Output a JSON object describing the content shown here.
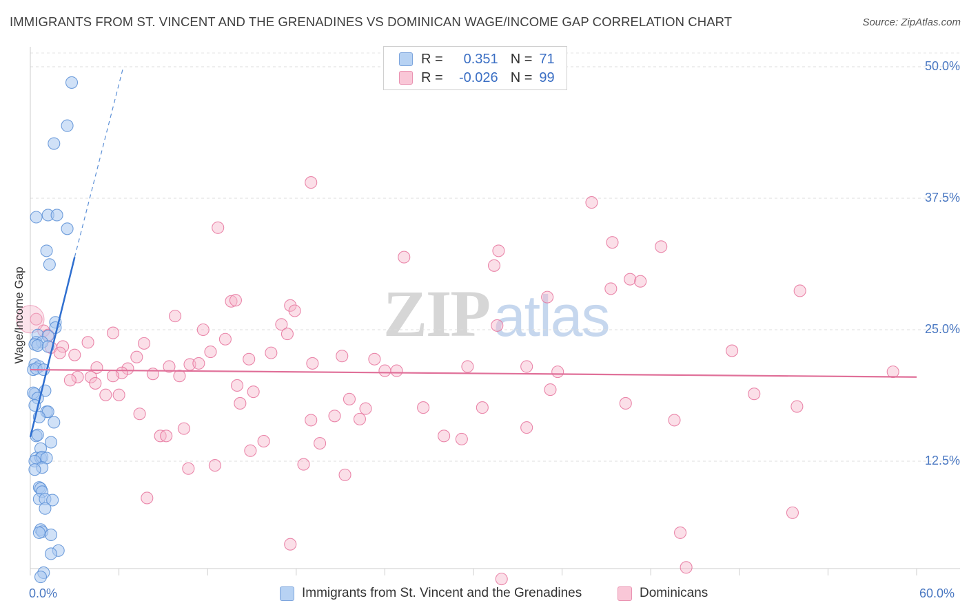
{
  "chart_data": {
    "type": "scatter",
    "title": "IMMIGRANTS FROM ST. VINCENT AND THE GRENADINES VS DOMINICAN WAGE/INCOME GAP CORRELATION CHART",
    "source": "Source: ZipAtlas.com",
    "xlabel": "",
    "ylabel": "Wage/Income Gap",
    "xlim": [
      0,
      60
    ],
    "ylim": [
      0,
      52
    ],
    "x_tick_labels": [
      "0.0%",
      "60.0%"
    ],
    "y_ticks": [
      12.5,
      25.0,
      37.5,
      50.0
    ],
    "y_tick_labels": [
      "12.5%",
      "25.0%",
      "37.5%",
      "50.0%"
    ],
    "watermark": {
      "zip": "ZIP",
      "atlas": "atlas"
    },
    "legend": [
      {
        "r_label": "R =",
        "r_value": "0.351",
        "n_label": "N =",
        "n_value": "71"
      },
      {
        "r_label": "R =",
        "r_value": "-0.026",
        "n_label": "N =",
        "n_value": "99"
      }
    ],
    "series": [
      {
        "name": "Immigrants from St. Vincent and the Grenadines",
        "color": "#5b8fd6",
        "fill": "#a9c8f0",
        "trend": {
          "x": [
            0.0,
            3.0
          ],
          "y": [
            14.8,
            31.9
          ],
          "dash_to": [
            6.3,
            50.0
          ]
        },
        "points": [
          [
            2.8,
            48.5
          ],
          [
            2.5,
            44.4
          ],
          [
            1.6,
            42.7
          ],
          [
            1.2,
            35.9
          ],
          [
            1.8,
            35.9
          ],
          [
            0.4,
            35.7
          ],
          [
            2.5,
            34.6
          ],
          [
            1.1,
            32.5
          ],
          [
            1.3,
            31.2
          ],
          [
            1.7,
            25.7
          ],
          [
            1.7,
            25.2
          ],
          [
            0.5,
            24.5
          ],
          [
            1.2,
            24.4
          ],
          [
            0.4,
            23.8
          ],
          [
            0.8,
            23.8
          ],
          [
            0.3,
            23.6
          ],
          [
            0.5,
            23.5
          ],
          [
            1.2,
            23.4
          ],
          [
            0.3,
            21.7
          ],
          [
            0.6,
            21.5
          ],
          [
            0.2,
            21.2
          ],
          [
            0.4,
            21.3
          ],
          [
            0.9,
            21.2
          ],
          [
            1.0,
            19.2
          ],
          [
            0.3,
            18.9
          ],
          [
            0.2,
            19.0
          ],
          [
            0.5,
            18.5
          ],
          [
            0.3,
            17.8
          ],
          [
            1.1,
            17.2
          ],
          [
            1.2,
            17.2
          ],
          [
            0.6,
            16.7
          ],
          [
            1.6,
            16.2
          ],
          [
            0.4,
            14.9
          ],
          [
            0.5,
            15.0
          ],
          [
            1.4,
            14.3
          ],
          [
            0.7,
            13.7
          ],
          [
            0.4,
            12.8
          ],
          [
            0.7,
            12.8
          ],
          [
            0.8,
            12.9
          ],
          [
            1.1,
            12.8
          ],
          [
            0.3,
            12.5
          ],
          [
            0.8,
            11.9
          ],
          [
            0.3,
            11.7
          ],
          [
            0.6,
            10.0
          ],
          [
            0.7,
            9.9
          ],
          [
            0.8,
            9.6
          ],
          [
            0.6,
            8.9
          ],
          [
            1.0,
            8.9
          ],
          [
            1.5,
            8.8
          ],
          [
            1.0,
            8.0
          ],
          [
            0.7,
            6.0
          ],
          [
            0.8,
            5.8
          ],
          [
            0.6,
            5.7
          ],
          [
            1.4,
            5.5
          ],
          [
            1.9,
            4.0
          ],
          [
            1.4,
            3.7
          ],
          [
            0.9,
            1.9
          ],
          [
            0.7,
            1.5
          ]
        ]
      },
      {
        "name": "Dominicans",
        "color": "#e6739c",
        "fill": "#f6b9cd",
        "trend": {
          "x": [
            0.0,
            60.0
          ],
          "y": [
            21.2,
            20.5
          ]
        },
        "points": [
          [
            19.0,
            39.0
          ],
          [
            38.0,
            37.1
          ],
          [
            12.7,
            34.7
          ],
          [
            39.4,
            33.3
          ],
          [
            42.7,
            32.9
          ],
          [
            31.7,
            32.5
          ],
          [
            25.3,
            31.9
          ],
          [
            31.4,
            31.1
          ],
          [
            40.6,
            29.8
          ],
          [
            41.3,
            29.6
          ],
          [
            39.3,
            28.9
          ],
          [
            52.1,
            28.7
          ],
          [
            35.0,
            28.1
          ],
          [
            13.6,
            27.7
          ],
          [
            13.9,
            27.8
          ],
          [
            17.6,
            27.3
          ],
          [
            17.9,
            26.8
          ],
          [
            9.8,
            26.3
          ],
          [
            0.4,
            26.0
          ],
          [
            17.0,
            25.5
          ],
          [
            31.6,
            25.4
          ],
          [
            11.7,
            25.0
          ],
          [
            0.9,
            24.9
          ],
          [
            1.2,
            24.5
          ],
          [
            5.6,
            24.7
          ],
          [
            17.4,
            24.6
          ],
          [
            13.2,
            24.1
          ],
          [
            3.9,
            23.8
          ],
          [
            7.7,
            23.7
          ],
          [
            1.4,
            23.3
          ],
          [
            2.2,
            23.4
          ],
          [
            2.0,
            22.8
          ],
          [
            16.3,
            22.8
          ],
          [
            12.2,
            22.9
          ],
          [
            3.0,
            22.6
          ],
          [
            21.1,
            22.5
          ],
          [
            23.3,
            22.2
          ],
          [
            14.8,
            22.2
          ],
          [
            7.2,
            22.4
          ],
          [
            47.5,
            23.0
          ],
          [
            10.8,
            21.7
          ],
          [
            19.1,
            21.8
          ],
          [
            11.4,
            21.8
          ],
          [
            4.5,
            21.4
          ],
          [
            6.6,
            21.3
          ],
          [
            9.4,
            21.5
          ],
          [
            29.6,
            21.5
          ],
          [
            33.6,
            21.5
          ],
          [
            24.0,
            21.1
          ],
          [
            24.8,
            21.1
          ],
          [
            35.7,
            21.0
          ],
          [
            58.4,
            21.0
          ],
          [
            4.1,
            20.5
          ],
          [
            6.2,
            20.9
          ],
          [
            8.3,
            20.8
          ],
          [
            10.1,
            20.6
          ],
          [
            3.2,
            20.5
          ],
          [
            5.6,
            20.6
          ],
          [
            2.7,
            20.2
          ],
          [
            4.4,
            19.9
          ],
          [
            14.0,
            19.7
          ],
          [
            35.2,
            19.3
          ],
          [
            15.1,
            19.1
          ],
          [
            49.0,
            18.9
          ],
          [
            5.1,
            18.8
          ],
          [
            6.0,
            18.8
          ],
          [
            21.6,
            18.4
          ],
          [
            40.3,
            18.0
          ],
          [
            14.2,
            18.0
          ],
          [
            51.9,
            17.7
          ],
          [
            22.7,
            17.5
          ],
          [
            26.6,
            17.6
          ],
          [
            30.6,
            17.6
          ],
          [
            7.4,
            17.0
          ],
          [
            20.6,
            16.8
          ],
          [
            19.0,
            16.4
          ],
          [
            22.3,
            16.5
          ],
          [
            43.6,
            16.4
          ],
          [
            10.4,
            15.6
          ],
          [
            33.6,
            15.7
          ],
          [
            8.8,
            14.9
          ],
          [
            9.2,
            14.9
          ],
          [
            28.0,
            14.9
          ],
          [
            29.2,
            14.6
          ],
          [
            15.8,
            14.4
          ],
          [
            19.6,
            14.2
          ],
          [
            14.9,
            13.5
          ],
          [
            18.5,
            12.2
          ],
          [
            12.5,
            12.1
          ],
          [
            10.7,
            11.8
          ],
          [
            21.3,
            11.2
          ],
          [
            7.9,
            9.0
          ],
          [
            51.6,
            7.6
          ],
          [
            44.0,
            5.7
          ],
          [
            17.6,
            4.6
          ],
          [
            44.4,
            2.4
          ],
          [
            31.9,
            1.3
          ]
        ]
      }
    ]
  }
}
